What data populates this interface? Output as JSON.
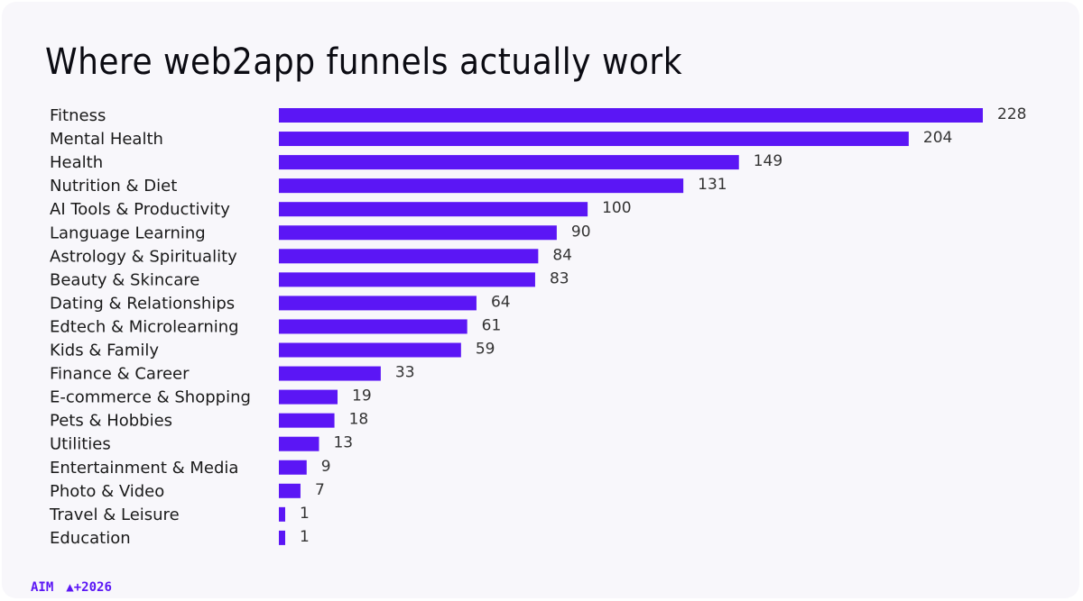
{
  "title": "Where web2app funnels actually work",
  "footer": {
    "brand": "AIM",
    "tag": "▲+2026"
  },
  "colors": {
    "bar": "#5b16f5",
    "background": "#f8f7fb"
  },
  "chart_data": {
    "type": "bar",
    "orientation": "horizontal",
    "title": "Where web2app funnels actually work",
    "xlabel": "",
    "ylabel": "",
    "xlim": [
      0,
      228
    ],
    "grid": false,
    "categories": [
      "Fitness",
      "Mental Health",
      "Health",
      "Nutrition & Diet",
      "AI Tools & Productivity",
      "Language Learning",
      "Astrology & Spirituality",
      "Beauty & Skincare",
      "Dating & Relationships",
      "Edtech & Microlearning",
      "Kids & Family",
      "Finance & Career",
      "E-commerce & Shopping",
      "Pets & Hobbies",
      "Utilities",
      "Entertainment & Media",
      "Photo & Video",
      "Travel & Leisure",
      "Education"
    ],
    "values": [
      228,
      204,
      149,
      131,
      100,
      90,
      84,
      83,
      64,
      61,
      59,
      33,
      19,
      18,
      13,
      9,
      7,
      1,
      1
    ]
  }
}
